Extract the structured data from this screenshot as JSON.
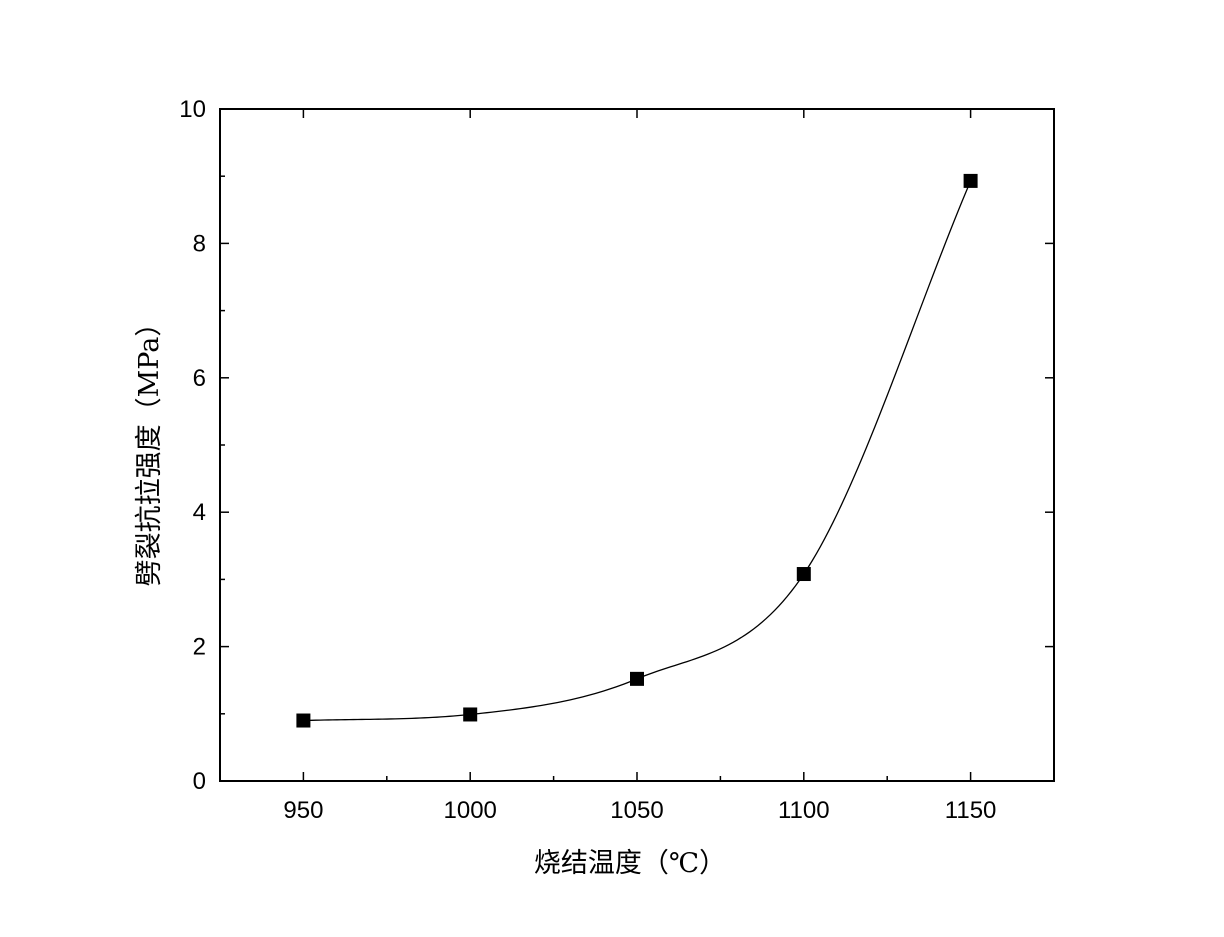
{
  "chart_data": {
    "type": "line",
    "title": "",
    "xlabel": "烧结温度（℃）",
    "ylabel": "劈裂抗拉强度（MPa）",
    "xlim": [
      925,
      1175
    ],
    "ylim": [
      0,
      10
    ],
    "x_ticks": [
      "950",
      "1000",
      "1050",
      "1100",
      "1150"
    ],
    "y_ticks": [
      "0",
      "2",
      "4",
      "6",
      "8",
      "10"
    ],
    "grid": false,
    "marker": "square",
    "smooth": true,
    "series": [
      {
        "x": [
          950,
          1000,
          1050,
          1100,
          1150
        ],
        "y": [
          0.9,
          0.99,
          1.52,
          3.08,
          8.93
        ]
      }
    ]
  }
}
